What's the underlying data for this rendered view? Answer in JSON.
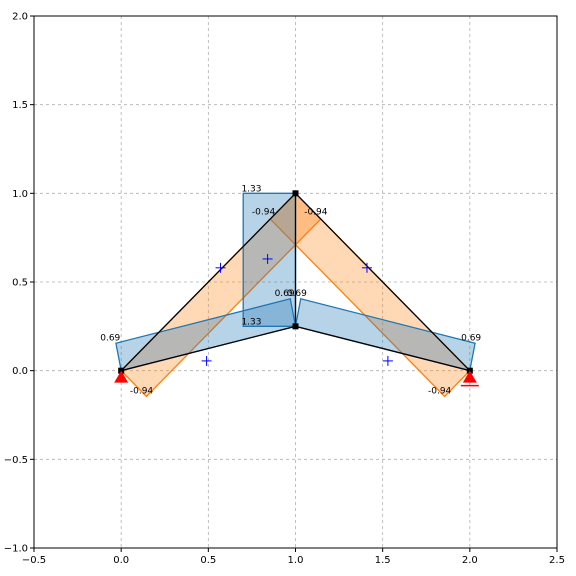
{
  "chart_data": {
    "type": "diagram",
    "xlim": [
      -0.5,
      2.5
    ],
    "ylim": [
      -1.0,
      2.0
    ],
    "grid": true,
    "x_ticks": [
      {
        "value": -0.5,
        "label": "−0.5"
      },
      {
        "value": 0.0,
        "label": "0.0"
      },
      {
        "value": 0.5,
        "label": "0.5"
      },
      {
        "value": 1.0,
        "label": "1.0"
      },
      {
        "value": 1.5,
        "label": "1.5"
      },
      {
        "value": 2.0,
        "label": "2.0"
      },
      {
        "value": 2.5,
        "label": "2.5"
      }
    ],
    "y_ticks": [
      {
        "value": -1.0,
        "label": "−1.0"
      },
      {
        "value": -0.5,
        "label": "−0.5"
      },
      {
        "value": 0.0,
        "label": "0.0"
      },
      {
        "value": 0.5,
        "label": "0.5"
      },
      {
        "value": 1.0,
        "label": "1.0"
      },
      {
        "value": 1.5,
        "label": "1.5"
      },
      {
        "value": 2.0,
        "label": "2.0"
      }
    ],
    "colors": {
      "blue_fill": "#1f77b4",
      "orange_fill": "#ff7f0e",
      "member": "#000000",
      "load_marker": "#0000ff",
      "support": "#ff0000",
      "grid": "#b0b0b0"
    },
    "nodes": [
      {
        "name": "n0",
        "x": 0.0,
        "y": 0.0
      },
      {
        "name": "n1",
        "x": 1.0,
        "y": 1.0
      },
      {
        "name": "n2",
        "x": 2.0,
        "y": 0.0
      },
      {
        "name": "n3",
        "x": 1.0,
        "y": 0.25
      }
    ],
    "members": [
      {
        "from": [
          0.0,
          0.0
        ],
        "to": [
          1.0,
          1.0
        ]
      },
      {
        "from": [
          1.0,
          1.0
        ],
        "to": [
          2.0,
          0.0
        ]
      },
      {
        "from": [
          0.0,
          0.0
        ],
        "to": [
          1.0,
          0.25
        ]
      },
      {
        "from": [
          1.0,
          0.25
        ],
        "to": [
          2.0,
          0.0
        ]
      },
      {
        "from": [
          1.0,
          1.0
        ],
        "to": [
          1.0,
          0.25
        ]
      }
    ],
    "blue_diagrams": [
      [
        [
          0.0,
          0.0
        ],
        [
          1.0,
          0.25
        ],
        [
          0.97,
          0.405
        ],
        [
          -0.03,
          0.155
        ]
      ],
      [
        [
          1.0,
          0.25
        ],
        [
          2.0,
          0.0
        ],
        [
          2.03,
          0.155
        ],
        [
          1.03,
          0.405
        ]
      ],
      [
        [
          1.0,
          1.0
        ],
        [
          1.0,
          0.25
        ],
        [
          0.7,
          0.25
        ],
        [
          0.7,
          1.0
        ]
      ]
    ],
    "orange_diagrams": [
      [
        [
          0.0,
          0.0
        ],
        [
          1.0,
          1.0
        ],
        [
          1.145,
          0.855
        ],
        [
          0.145,
          -0.145
        ]
      ],
      [
        [
          1.0,
          1.0
        ],
        [
          2.0,
          0.0
        ],
        [
          1.855,
          -0.145
        ],
        [
          0.855,
          0.855
        ]
      ]
    ],
    "load_markers": [
      {
        "x": 0.49,
        "y": 0.055
      },
      {
        "x": 1.53,
        "y": 0.055
      },
      {
        "x": 0.84,
        "y": 0.63
      },
      {
        "x": 0.57,
        "y": 0.58
      },
      {
        "x": 1.41,
        "y": 0.58
      }
    ],
    "supports": [
      {
        "x": 0.0,
        "y": 0.0,
        "type": "pin"
      },
      {
        "x": 2.0,
        "y": 0.0,
        "type": "roller"
      }
    ],
    "labels": [
      {
        "x": 0.69,
        "y": 1.01,
        "text": "1.33"
      },
      {
        "x": 0.69,
        "y": 0.26,
        "text": "1.33"
      },
      {
        "x": 0.75,
        "y": 0.88,
        "text": "-0.94"
      },
      {
        "x": 1.05,
        "y": 0.88,
        "text": "-0.94"
      },
      {
        "x": -0.12,
        "y": 0.17,
        "text": "0.69"
      },
      {
        "x": 0.88,
        "y": 0.42,
        "text": "0.69"
      },
      {
        "x": 0.95,
        "y": 0.42,
        "text": "0.69"
      },
      {
        "x": 1.95,
        "y": 0.17,
        "text": "0.69"
      },
      {
        "x": 0.05,
        "y": -0.13,
        "text": "-0.94"
      },
      {
        "x": 1.76,
        "y": -0.13,
        "text": "-0.94"
      }
    ]
  }
}
